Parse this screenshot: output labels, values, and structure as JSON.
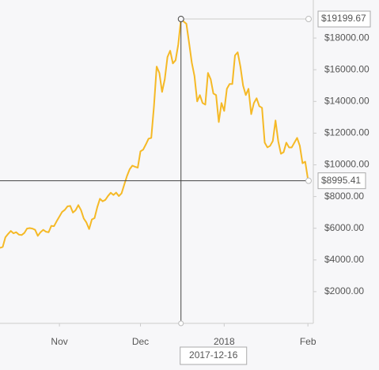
{
  "chart_data": {
    "type": "line",
    "color": "#f5b926",
    "x": [
      "2017-10-10",
      "2017-10-11",
      "2017-10-12",
      "2017-10-13",
      "2017-10-14",
      "2017-10-15",
      "2017-10-16",
      "2017-10-17",
      "2017-10-18",
      "2017-10-19",
      "2017-10-20",
      "2017-10-21",
      "2017-10-22",
      "2017-10-23",
      "2017-10-24",
      "2017-10-25",
      "2017-10-26",
      "2017-10-27",
      "2017-10-28",
      "2017-10-29",
      "2017-10-30",
      "2017-10-31",
      "2017-11-01",
      "2017-11-02",
      "2017-11-03",
      "2017-11-04",
      "2017-11-05",
      "2017-11-06",
      "2017-11-07",
      "2017-11-08",
      "2017-11-09",
      "2017-11-10",
      "2017-11-11",
      "2017-11-12",
      "2017-11-13",
      "2017-11-14",
      "2017-11-15",
      "2017-11-16",
      "2017-11-17",
      "2017-11-18",
      "2017-11-19",
      "2017-11-20",
      "2017-11-21",
      "2017-11-22",
      "2017-11-23",
      "2017-11-24",
      "2017-11-25",
      "2017-11-26",
      "2017-11-27",
      "2017-11-28",
      "2017-11-29",
      "2017-11-30",
      "2017-12-01",
      "2017-12-02",
      "2017-12-03",
      "2017-12-04",
      "2017-12-05",
      "2017-12-06",
      "2017-12-07",
      "2017-12-08",
      "2017-12-09",
      "2017-12-10",
      "2017-12-11",
      "2017-12-12",
      "2017-12-13",
      "2017-12-14",
      "2017-12-15",
      "2017-12-16",
      "2017-12-17",
      "2017-12-18",
      "2017-12-19",
      "2017-12-20",
      "2017-12-21",
      "2017-12-22",
      "2017-12-23",
      "2017-12-24",
      "2017-12-25",
      "2017-12-26",
      "2017-12-27",
      "2017-12-28",
      "2017-12-29",
      "2017-12-30",
      "2017-12-31",
      "2018-01-01",
      "2018-01-02",
      "2018-01-03",
      "2018-01-04",
      "2018-01-05",
      "2018-01-06",
      "2018-01-07",
      "2018-01-08",
      "2018-01-09",
      "2018-01-10",
      "2018-01-11",
      "2018-01-12",
      "2018-01-13",
      "2018-01-14",
      "2018-01-15",
      "2018-01-16",
      "2018-01-17",
      "2018-01-18",
      "2018-01-19",
      "2018-01-20",
      "2018-01-21",
      "2018-01-22",
      "2018-01-23",
      "2018-01-24",
      "2018-01-25",
      "2018-01-26",
      "2018-01-27",
      "2018-01-28",
      "2018-01-29",
      "2018-01-30",
      "2018-01-31",
      "2018-02-01",
      "2018-02-02"
    ],
    "values": [
      4760,
      4820,
      5430,
      5640,
      5830,
      5680,
      5750,
      5600,
      5570,
      5700,
      5980,
      6010,
      5980,
      5900,
      5520,
      5750,
      5900,
      5780,
      5750,
      6150,
      6130,
      6450,
      6740,
      7030,
      7160,
      7380,
      7410,
      6990,
      7140,
      7460,
      7140,
      6620,
      6360,
      5950,
      6550,
      6640,
      7320,
      7860,
      7700,
      7790,
      8040,
      8240,
      8100,
      8250,
      8030,
      8200,
      8750,
      9290,
      9720,
      9950,
      9880,
      9820,
      10850,
      10960,
      11290,
      11650,
      11700,
      13700,
      16200,
      15800,
      14600,
      15400,
      16800,
      17200,
      16400,
      16600,
      17600,
      19199.67,
      19040,
      18900,
      17700,
      16450,
      15600,
      14000,
      14400,
      13900,
      13800,
      15800,
      15400,
      14500,
      14400,
      12700,
      13900,
      13400,
      14800,
      15100,
      15100,
      16900,
      17100,
      16200,
      15000,
      14400,
      14800,
      13200,
      13900,
      14200,
      13700,
      13600,
      11400,
      11100,
      11200,
      11500,
      12800,
      11500,
      10700,
      10800,
      11400,
      11100,
      11100,
      11400,
      11700,
      11200,
      10100,
      10200,
      9100,
      8995.41
    ],
    "xlim": [
      "2017-10-10",
      "2018-02-03"
    ],
    "xticks": [
      {
        "value": "2017-11-01",
        "label": "Nov"
      },
      {
        "value": "2017-12-01",
        "label": "Dec"
      },
      {
        "value": "2018-01-01",
        "label": "2018"
      },
      {
        "value": "2018-02-01",
        "label": "Feb"
      }
    ],
    "ylim": [
      0,
      20000
    ],
    "yticks": [
      {
        "value": 2000,
        "label": "$2000.00"
      },
      {
        "value": 4000,
        "label": "$4000.00"
      },
      {
        "value": 6000,
        "label": "$6000.00"
      },
      {
        "value": 8000,
        "label": "$8000.00"
      },
      {
        "value": 10000,
        "label": "$10000.00"
      },
      {
        "value": 12000,
        "label": "$12000.00"
      },
      {
        "value": 14000,
        "label": "$14000.00"
      },
      {
        "value": 16000,
        "label": "$16000.00"
      },
      {
        "value": 18000,
        "label": "$18000.00"
      }
    ],
    "peak": {
      "value": 19199.67,
      "label": "$19199.67"
    },
    "crosshair": {
      "date": "2017-12-16",
      "value": 8995.41,
      "label": "$8995.41"
    }
  }
}
